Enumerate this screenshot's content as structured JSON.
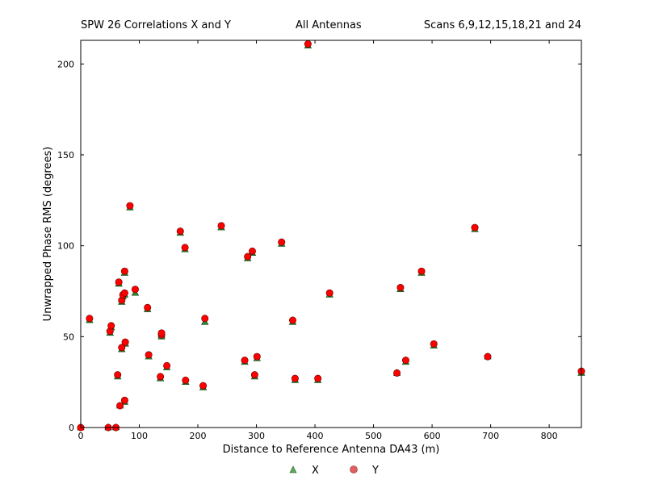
{
  "header": {
    "left": "SPW 26 Correlations X and Y",
    "middle": "All Antennas",
    "right": "Scans 6,9,12,15,18,21 and 24"
  },
  "chart_data": {
    "type": "scatter",
    "title": "SPW 26 Correlations X and Y",
    "xlabel": "Distance to Reference Antenna DA43 (m)",
    "ylabel": "Unwrapped Phase RMS (degrees)",
    "xlim": [
      0,
      855
    ],
    "ylim": [
      0,
      213
    ],
    "xticks": [
      0,
      100,
      200,
      300,
      400,
      500,
      600,
      700,
      800
    ],
    "yticks": [
      0,
      50,
      100,
      150,
      200
    ],
    "grid": false,
    "legend_position": "bottom-center",
    "series": [
      {
        "name": "X",
        "marker": "triangle",
        "color": "#2e8b2e",
        "points": [
          [
            0,
            0
          ],
          [
            15,
            59
          ],
          [
            47,
            0
          ],
          [
            50,
            52
          ],
          [
            52,
            55
          ],
          [
            60,
            0
          ],
          [
            63,
            28
          ],
          [
            65,
            79
          ],
          [
            67,
            12
          ],
          [
            70,
            43
          ],
          [
            70,
            69
          ],
          [
            72,
            72
          ],
          [
            75,
            85
          ],
          [
            75,
            73
          ],
          [
            75,
            14
          ],
          [
            76,
            46
          ],
          [
            84,
            121
          ],
          [
            93,
            74
          ],
          [
            114,
            65
          ],
          [
            116,
            39
          ],
          [
            136,
            27
          ],
          [
            138,
            50
          ],
          [
            138,
            51
          ],
          [
            147,
            33
          ],
          [
            170,
            107
          ],
          [
            178,
            98
          ],
          [
            179,
            25
          ],
          [
            209,
            22
          ],
          [
            212,
            58
          ],
          [
            240,
            110
          ],
          [
            280,
            36
          ],
          [
            285,
            93
          ],
          [
            293,
            96
          ],
          [
            297,
            28
          ],
          [
            301,
            38
          ],
          [
            343,
            101
          ],
          [
            362,
            58
          ],
          [
            366,
            26
          ],
          [
            405,
            26
          ],
          [
            388,
            210
          ],
          [
            425,
            73
          ],
          [
            540,
            30
          ],
          [
            546,
            76
          ],
          [
            555,
            36
          ],
          [
            582,
            85
          ],
          [
            603,
            45
          ],
          [
            673,
            109
          ],
          [
            695,
            39
          ],
          [
            855,
            30
          ]
        ]
      },
      {
        "name": "Y",
        "marker": "circle",
        "color": "#ff0000",
        "points": [
          [
            0,
            0
          ],
          [
            15,
            60
          ],
          [
            47,
            0
          ],
          [
            50,
            53
          ],
          [
            52,
            56
          ],
          [
            60,
            0
          ],
          [
            63,
            29
          ],
          [
            65,
            80
          ],
          [
            67,
            12
          ],
          [
            70,
            44
          ],
          [
            70,
            70
          ],
          [
            72,
            73
          ],
          [
            75,
            86
          ],
          [
            75,
            74
          ],
          [
            75,
            15
          ],
          [
            76,
            47
          ],
          [
            84,
            122
          ],
          [
            93,
            76
          ],
          [
            114,
            66
          ],
          [
            116,
            40
          ],
          [
            136,
            28
          ],
          [
            138,
            51
          ],
          [
            138,
            52
          ],
          [
            147,
            34
          ],
          [
            170,
            108
          ],
          [
            178,
            99
          ],
          [
            179,
            26
          ],
          [
            209,
            23
          ],
          [
            212,
            60
          ],
          [
            240,
            111
          ],
          [
            280,
            37
          ],
          [
            285,
            94
          ],
          [
            293,
            97
          ],
          [
            297,
            29
          ],
          [
            301,
            39
          ],
          [
            343,
            102
          ],
          [
            362,
            59
          ],
          [
            366,
            27
          ],
          [
            405,
            27
          ],
          [
            388,
            211
          ],
          [
            425,
            74
          ],
          [
            540,
            30
          ],
          [
            546,
            77
          ],
          [
            555,
            37
          ],
          [
            582,
            86
          ],
          [
            603,
            46
          ],
          [
            673,
            110
          ],
          [
            695,
            39
          ],
          [
            855,
            31
          ]
        ]
      }
    ]
  }
}
